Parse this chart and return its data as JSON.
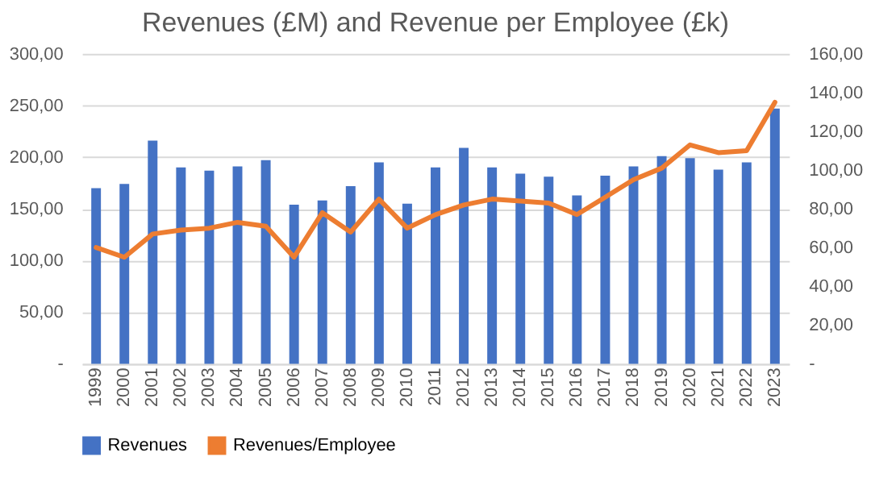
{
  "chart_data": {
    "type": "bar",
    "title": "Revenues (£M) and Revenue per Employee (£k)",
    "categories": [
      "1999",
      "2000",
      "2001",
      "2002",
      "2003",
      "2004",
      "2005",
      "2006",
      "2007",
      "2008",
      "2009",
      "2010",
      "2011",
      "2012",
      "2013",
      "2014",
      "2015",
      "2016",
      "2017",
      "2018",
      "2019",
      "2020",
      "2021",
      "2022",
      "2023"
    ],
    "series": [
      {
        "name": "Revenues",
        "color": "#4472c4",
        "values": [
          170,
          174,
          216,
          190,
          187,
          191,
          197,
          154,
          158,
          172,
          195,
          155,
          190,
          209,
          190,
          184,
          181,
          163,
          182,
          191,
          201,
          199,
          188,
          195,
          247
        ]
      },
      {
        "name": "Revenues/Employee",
        "type": "line",
        "axis": "y2",
        "color": "#ed7d31",
        "values": [
          60,
          55,
          67,
          69,
          70,
          73,
          71,
          55,
          78,
          68,
          85,
          70,
          77,
          82,
          85,
          84,
          83,
          77,
          86,
          95,
          101,
          113,
          109,
          110,
          135
        ]
      }
    ],
    "ylim": [
      0,
      300
    ],
    "yticks": [
      {
        "value": 0,
        "label": "-"
      },
      {
        "value": 50,
        "label": "50,00"
      },
      {
        "value": 100,
        "label": "100,00"
      },
      {
        "value": 150,
        "label": "150,00"
      },
      {
        "value": 200,
        "label": "200,00"
      },
      {
        "value": 250,
        "label": "250,00"
      },
      {
        "value": 300,
        "label": "300,00"
      }
    ],
    "y2lim": [
      0,
      160
    ],
    "y2ticks": [
      {
        "value": 0,
        "label": "-"
      },
      {
        "value": 20,
        "label": "20,00"
      },
      {
        "value": 40,
        "label": "40,00"
      },
      {
        "value": 60,
        "label": "60,00"
      },
      {
        "value": 80,
        "label": "80,00"
      },
      {
        "value": 100,
        "label": "100,00"
      },
      {
        "value": 120,
        "label": "120,00"
      },
      {
        "value": 140,
        "label": "140,00"
      },
      {
        "value": 160,
        "label": "160,00"
      }
    ],
    "grid": "y",
    "legend": "bottom",
    "marker": "none",
    "line_style": "solid"
  }
}
